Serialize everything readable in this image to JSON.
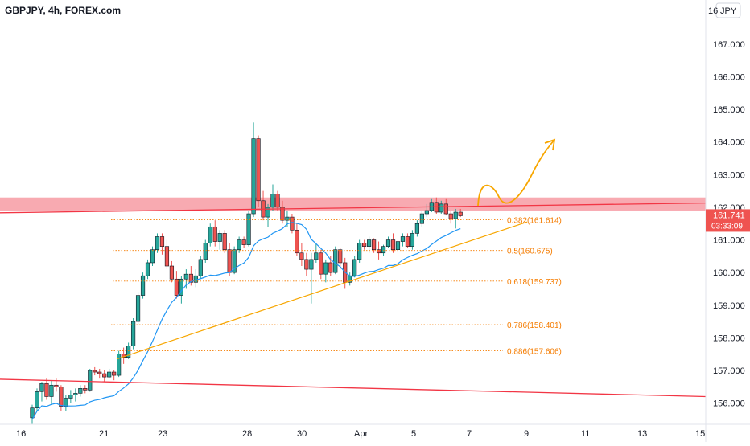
{
  "header": {
    "symbol_title": "GBPJPY, 4h, FOREX.com"
  },
  "currency_badge": "JPY",
  "colors": {
    "up": "#26a69a",
    "down": "#ef5350",
    "candle_border": "#131722",
    "ma_line": "#2196f3",
    "support_line": "#f7a600",
    "resistance_line": "#f23645",
    "resistance_zone": "#f7a1a8",
    "fib_text": "#f57c00",
    "price_label_bg": "#ef5350",
    "axis_text": "#131722"
  },
  "chart_data": {
    "type": "candlestick",
    "title": "GBPJPY, 4h, FOREX.com",
    "y_axis": {
      "side": "right",
      "unit": "JPY",
      "ticks": [
        "156.000",
        "157.000",
        "158.000",
        "159.000",
        "160.000",
        "161.000",
        "162.000",
        "163.000",
        "164.000",
        "165.000",
        "166.000",
        "167.000"
      ],
      "range": [
        155.35,
        168.35
      ]
    },
    "x_axis": {
      "ticks": [
        "16",
        "21",
        "23",
        "28",
        "30",
        "Apr",
        "5",
        "7",
        "9",
        "11",
        "13",
        "15"
      ]
    },
    "current_price": {
      "value": "161.741",
      "countdown": "03:33:09"
    },
    "fibonacci_levels": [
      {
        "ratio": "0.382",
        "value": 161.614,
        "label": "0.382(161.614)"
      },
      {
        "ratio": "0.5",
        "value": 160.675,
        "label": "0.5(160.675)"
      },
      {
        "ratio": "0.618",
        "value": 159.737,
        "label": "0.618(159.737)"
      },
      {
        "ratio": "0.786",
        "value": 158.401,
        "label": "0.786(158.401)"
      },
      {
        "ratio": "0.886",
        "value": 157.606,
        "label": "0.886(157.606)"
      }
    ],
    "resistance_zone": {
      "from": 161.9,
      "to": 162.3
    },
    "candles": [
      [
        155.55,
        155.95,
        155.35,
        155.85
      ],
      [
        155.85,
        156.45,
        155.75,
        156.35
      ],
      [
        156.35,
        156.65,
        156.05,
        156.6
      ],
      [
        156.6,
        156.75,
        156.1,
        156.2
      ],
      [
        156.2,
        156.7,
        155.95,
        156.55
      ],
      [
        156.55,
        156.75,
        156.35,
        156.5
      ],
      [
        156.5,
        156.55,
        155.75,
        155.9
      ],
      [
        155.9,
        156.25,
        155.75,
        156.15
      ],
      [
        156.15,
        156.4,
        156.0,
        156.25
      ],
      [
        156.25,
        156.45,
        156.05,
        156.3
      ],
      [
        156.3,
        156.55,
        156.2,
        156.45
      ],
      [
        156.45,
        156.55,
        156.3,
        156.4
      ],
      [
        156.4,
        157.05,
        156.35,
        157.0
      ],
      [
        157.0,
        157.1,
        156.85,
        156.95
      ],
      [
        156.95,
        157.05,
        156.75,
        156.9
      ],
      [
        156.9,
        157.0,
        156.65,
        156.8
      ],
      [
        156.8,
        157.05,
        156.75,
        156.95
      ],
      [
        156.95,
        157.0,
        156.7,
        156.85
      ],
      [
        156.85,
        157.6,
        156.8,
        157.5
      ],
      [
        157.5,
        157.7,
        157.2,
        157.4
      ],
      [
        157.4,
        157.85,
        157.35,
        157.75
      ],
      [
        157.75,
        158.6,
        157.65,
        158.5
      ],
      [
        158.5,
        159.4,
        158.4,
        159.3
      ],
      [
        159.3,
        160.0,
        159.2,
        159.9
      ],
      [
        159.9,
        160.4,
        159.8,
        160.3
      ],
      [
        160.3,
        160.8,
        160.2,
        160.7
      ],
      [
        160.7,
        161.2,
        160.6,
        161.1
      ],
      [
        161.1,
        161.2,
        160.55,
        160.8
      ],
      [
        160.8,
        161.0,
        160.1,
        160.2
      ],
      [
        160.2,
        160.35,
        159.7,
        159.8
      ],
      [
        159.8,
        160.05,
        159.2,
        159.3
      ],
      [
        159.3,
        159.9,
        159.05,
        159.8
      ],
      [
        159.8,
        160.1,
        159.5,
        159.95
      ],
      [
        159.95,
        160.2,
        159.6,
        159.7
      ],
      [
        159.7,
        160.1,
        159.55,
        159.9
      ],
      [
        159.9,
        160.5,
        159.8,
        160.4
      ],
      [
        160.4,
        161.0,
        160.3,
        160.9
      ],
      [
        160.9,
        161.5,
        160.8,
        161.4
      ],
      [
        161.4,
        161.6,
        160.8,
        160.95
      ],
      [
        160.95,
        161.3,
        160.7,
        161.2
      ],
      [
        161.2,
        161.3,
        160.6,
        160.7
      ],
      [
        160.7,
        160.9,
        159.9,
        160.0
      ],
      [
        160.0,
        160.8,
        159.95,
        160.7
      ],
      [
        160.7,
        161.1,
        160.6,
        161.0
      ],
      [
        161.0,
        161.1,
        160.75,
        160.85
      ],
      [
        160.85,
        161.9,
        160.8,
        161.8
      ],
      [
        161.8,
        164.6,
        161.7,
        164.1
      ],
      [
        164.1,
        164.2,
        162.0,
        162.2
      ],
      [
        162.2,
        162.5,
        161.6,
        161.7
      ],
      [
        161.7,
        162.1,
        161.4,
        162.0
      ],
      [
        162.0,
        162.7,
        161.9,
        162.4
      ],
      [
        162.4,
        162.5,
        161.9,
        162.0
      ],
      [
        162.0,
        162.2,
        161.5,
        161.6
      ],
      [
        161.6,
        161.9,
        161.4,
        161.7
      ],
      [
        161.7,
        161.8,
        161.2,
        161.3
      ],
      [
        161.3,
        161.5,
        160.5,
        160.6
      ],
      [
        160.6,
        160.9,
        160.2,
        160.4
      ],
      [
        160.4,
        160.6,
        159.9,
        160.1
      ],
      [
        160.1,
        160.6,
        159.05,
        160.4
      ],
      [
        160.4,
        160.9,
        160.3,
        160.6
      ],
      [
        160.6,
        160.7,
        159.8,
        159.95
      ],
      [
        159.95,
        160.4,
        159.7,
        160.3
      ],
      [
        160.3,
        160.5,
        159.9,
        160.0
      ],
      [
        160.0,
        160.8,
        159.95,
        160.7
      ],
      [
        160.7,
        160.75,
        160.1,
        160.3
      ],
      [
        160.3,
        160.45,
        159.5,
        159.7
      ],
      [
        159.7,
        160.0,
        159.6,
        159.9
      ],
      [
        159.9,
        160.5,
        159.85,
        160.4
      ],
      [
        160.4,
        161.0,
        160.3,
        160.9
      ],
      [
        160.9,
        161.0,
        160.7,
        160.8
      ],
      [
        160.8,
        161.1,
        160.6,
        161.0
      ],
      [
        161.0,
        161.05,
        160.6,
        160.7
      ],
      [
        160.7,
        160.95,
        160.4,
        160.6
      ],
      [
        160.6,
        160.85,
        160.5,
        160.8
      ],
      [
        160.8,
        161.1,
        160.75,
        161.0
      ],
      [
        161.0,
        161.2,
        160.6,
        160.7
      ],
      [
        160.7,
        161.0,
        160.65,
        160.95
      ],
      [
        160.95,
        161.2,
        160.8,
        161.1
      ],
      [
        161.1,
        161.2,
        160.75,
        160.8
      ],
      [
        160.8,
        161.3,
        160.7,
        161.2
      ],
      [
        161.2,
        161.6,
        161.1,
        161.5
      ],
      [
        161.5,
        161.9,
        161.4,
        161.8
      ],
      [
        161.8,
        162.1,
        161.7,
        161.9
      ],
      [
        161.9,
        162.25,
        161.85,
        162.15
      ],
      [
        162.15,
        162.3,
        161.8,
        161.85
      ],
      [
        161.85,
        162.2,
        161.8,
        162.1
      ],
      [
        162.1,
        162.25,
        161.75,
        161.8
      ],
      [
        161.8,
        161.9,
        161.5,
        161.65
      ],
      [
        161.65,
        161.95,
        161.35,
        161.85
      ],
      [
        161.85,
        161.95,
        161.7,
        161.74
      ]
    ]
  }
}
